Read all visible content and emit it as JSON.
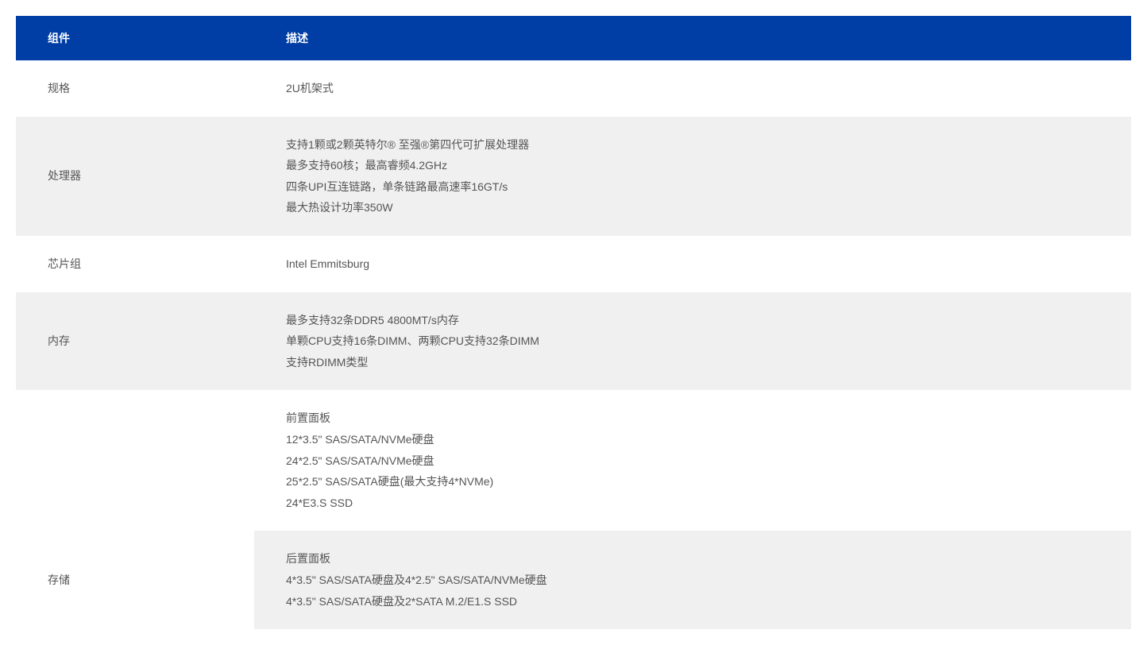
{
  "table": {
    "header_bg": "#003da5",
    "header_fg": "#ffffff",
    "row_white": "#ffffff",
    "row_grey": "#f0f0f0",
    "text_color": "#555555",
    "columns": {
      "component": "组件",
      "description": "描述"
    },
    "rows": [
      {
        "bg": "white",
        "component": "规格",
        "desc": [
          "2U机架式"
        ]
      },
      {
        "bg": "grey",
        "component": "处理器",
        "desc": [
          "支持1颗或2颗英特尔® 至强®第四代可扩展处理器",
          "最多支持60核；最高睿频4.2GHz",
          "四条UPI互连链路，单条链路最高速率16GT/s",
          "最大热设计功率350W"
        ]
      },
      {
        "bg": "white",
        "component": "芯片组",
        "desc": [
          "Intel Emmitsburg"
        ]
      },
      {
        "bg": "grey",
        "component": "内存",
        "desc": [
          "最多支持32条DDR5 4800MT/s内存",
          "单颗CPU支持16条DIMM、两颗CPU支持32条DIMM",
          "支持RDIMM类型"
        ]
      },
      {
        "bg": "white",
        "component": "",
        "desc": [
          "前置面板",
          "12*3.5\" SAS/SATA/NVMe硬盘",
          "24*2.5\" SAS/SATA/NVMe硬盘",
          "25*2.5\" SAS/SATA硬盘(最大支持4*NVMe)",
          "24*E3.S SSD"
        ]
      },
      {
        "bg": "grey",
        "component": "存储",
        "desc": [
          "后置面板",
          "4*3.5\" SAS/SATA硬盘及4*2.5\" SAS/SATA/NVMe硬盘",
          "4*3.5\" SAS/SATA硬盘及2*SATA M.2/E1.S SSD"
        ]
      }
    ]
  }
}
